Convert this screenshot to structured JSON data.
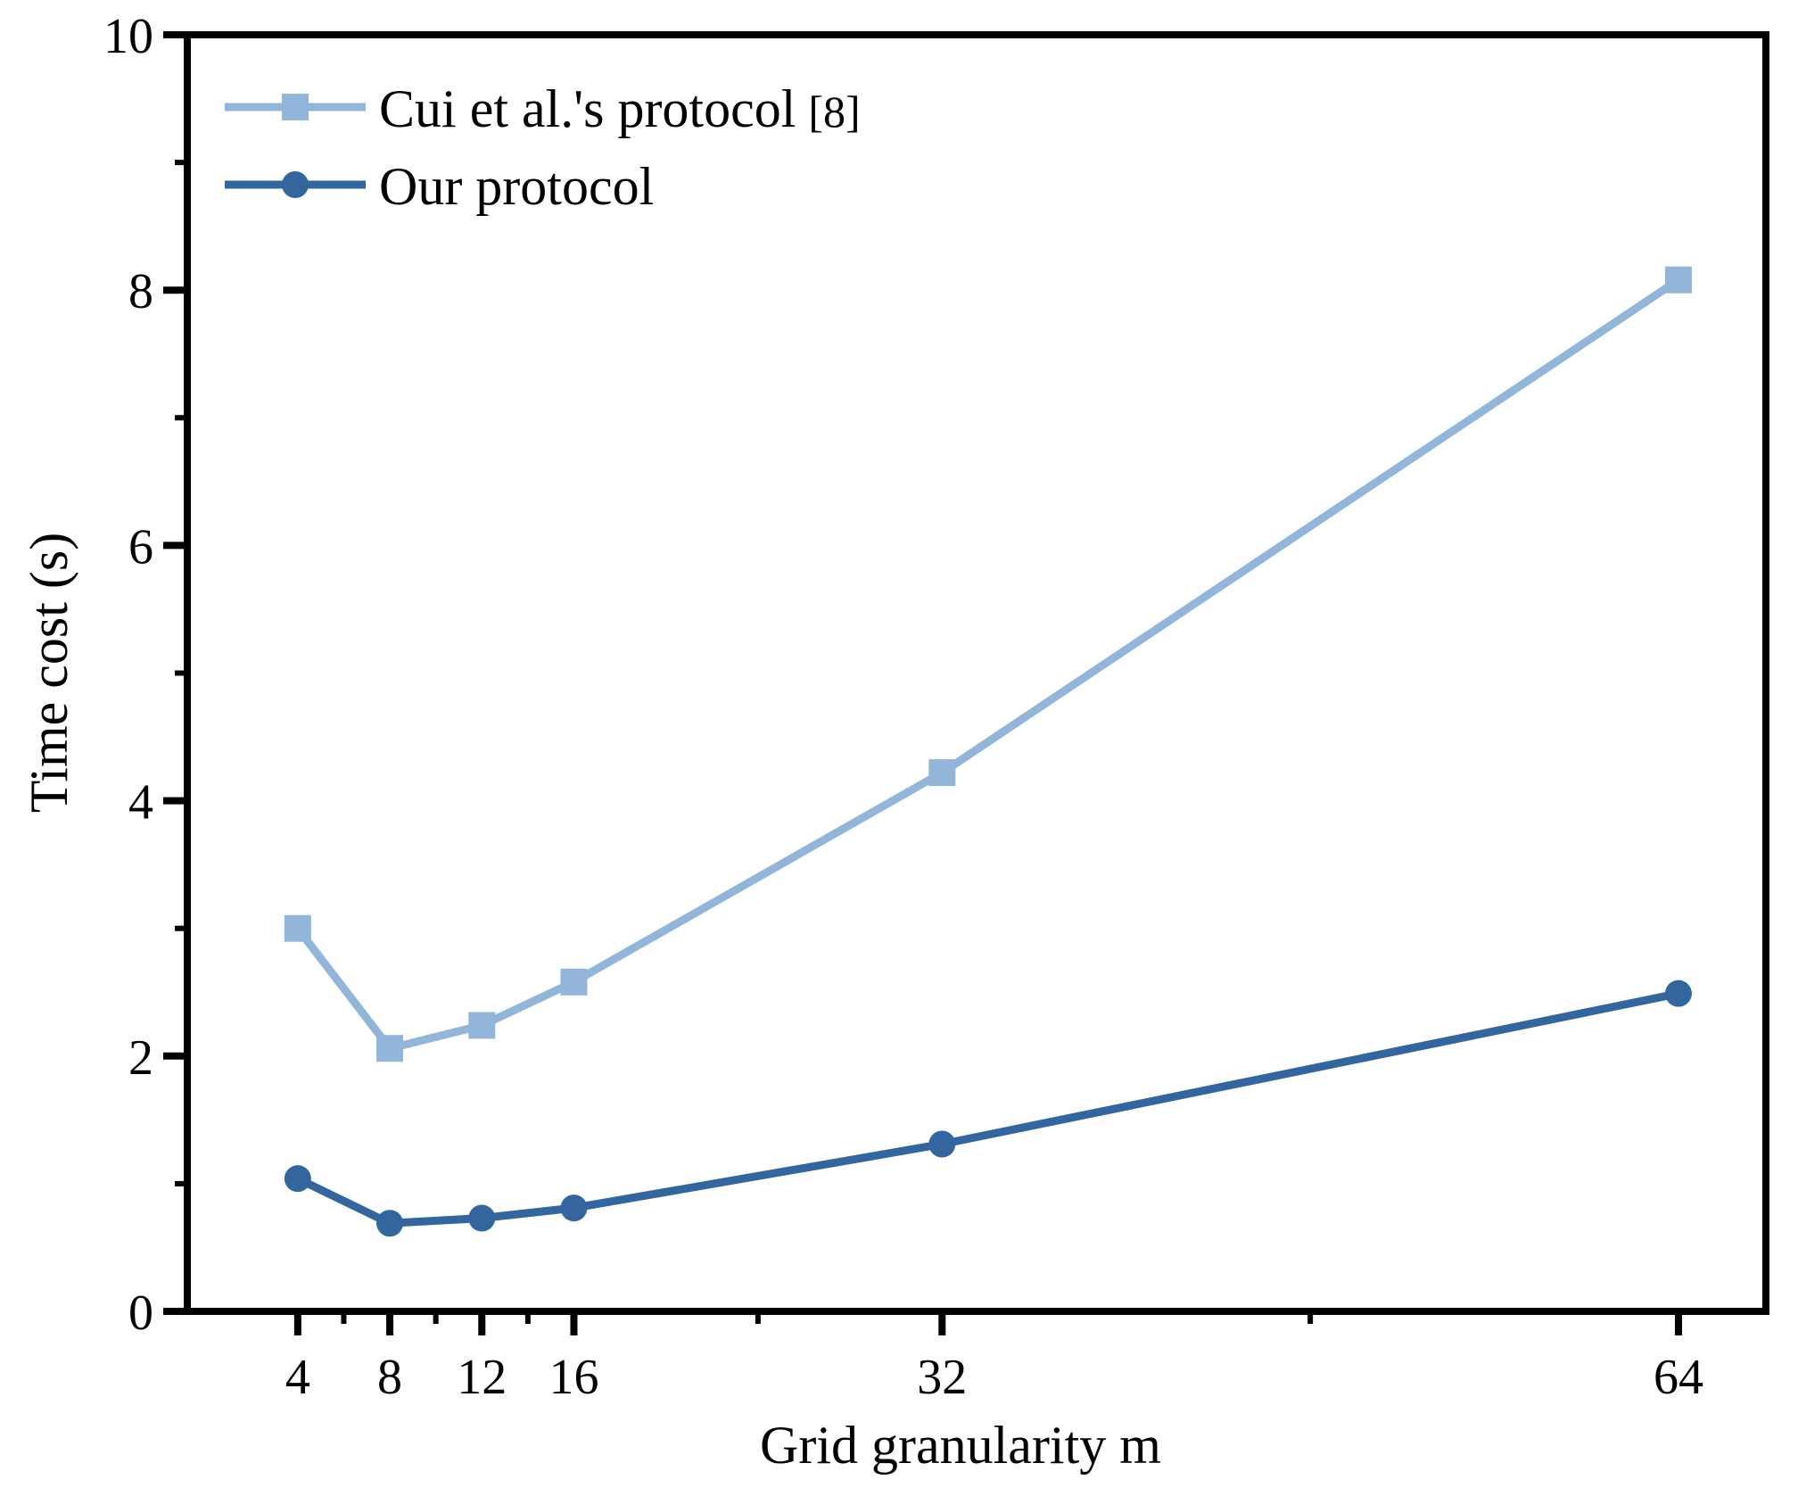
{
  "chart_data": {
    "type": "line",
    "xlabel": "Grid granularity m",
    "ylabel": "Time cost (s)",
    "x": [
      4,
      8,
      12,
      16,
      32,
      64
    ],
    "xticks": [
      4,
      8,
      12,
      16,
      32,
      64
    ],
    "xlim": [
      -0.8,
      67.8
    ],
    "ylim": [
      0,
      10
    ],
    "yticks": [
      0,
      2,
      4,
      6,
      8,
      10
    ],
    "grid": false,
    "legend_position": "top-left",
    "series": [
      {
        "name": "Cui et al.'s protocol",
        "ref": "[8]",
        "marker": "square",
        "color": "#92b6da",
        "values": [
          3.0,
          2.06,
          2.24,
          2.58,
          4.22,
          8.08
        ]
      },
      {
        "name": "Our protocol",
        "ref": "",
        "marker": "circle",
        "color": "#33669e",
        "values": [
          1.04,
          0.69,
          0.73,
          0.81,
          1.31,
          2.49
        ]
      }
    ]
  }
}
